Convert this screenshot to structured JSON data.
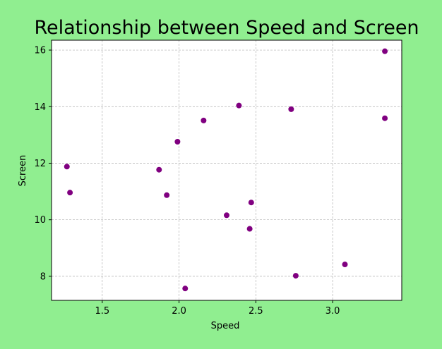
{
  "chart_data": {
    "type": "scatter",
    "title": "Relationship between Speed and Screen",
    "xlabel": "Speed",
    "ylabel": "Screen",
    "xlim": [
      1.17,
      3.45
    ],
    "ylim": [
      7.15,
      16.35
    ],
    "xticks": [
      1.5,
      2.0,
      2.5,
      3.0
    ],
    "xtick_labels": [
      "1.5",
      "2.0",
      "2.5",
      "3.0"
    ],
    "yticks": [
      8,
      10,
      12,
      14,
      16
    ],
    "ytick_labels": [
      "8",
      "10",
      "12",
      "14",
      "16"
    ],
    "grid": true,
    "marker_color": "#800080",
    "plot_background": "#ffffff",
    "figure_background": "#90ee90",
    "points": [
      {
        "x": 1.27,
        "y": 11.88
      },
      {
        "x": 1.29,
        "y": 10.96
      },
      {
        "x": 1.87,
        "y": 11.77
      },
      {
        "x": 1.92,
        "y": 10.87
      },
      {
        "x": 1.99,
        "y": 12.76
      },
      {
        "x": 2.04,
        "y": 7.57
      },
      {
        "x": 2.16,
        "y": 13.51
      },
      {
        "x": 2.31,
        "y": 10.16
      },
      {
        "x": 2.39,
        "y": 14.04
      },
      {
        "x": 2.46,
        "y": 9.68
      },
      {
        "x": 2.47,
        "y": 10.61
      },
      {
        "x": 2.73,
        "y": 13.91
      },
      {
        "x": 2.76,
        "y": 8.02
      },
      {
        "x": 3.08,
        "y": 8.42
      },
      {
        "x": 3.34,
        "y": 15.96
      },
      {
        "x": 3.34,
        "y": 13.59
      }
    ]
  }
}
